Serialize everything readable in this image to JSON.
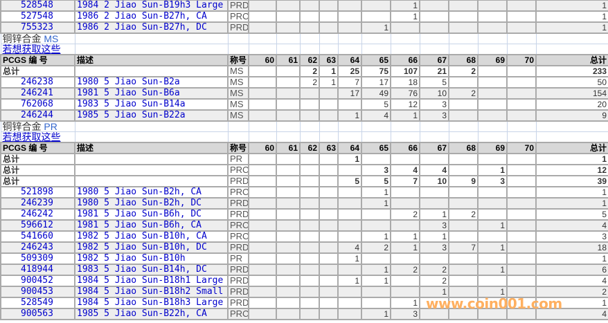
{
  "columns": {
    "pcgs": "PCGS 编 号",
    "desc": "描述",
    "grade": "称号",
    "grades": [
      "60",
      "61",
      "62",
      "63",
      "64",
      "65",
      "66",
      "67",
      "68",
      "69",
      "70"
    ],
    "total": "总计"
  },
  "top_rows": [
    {
      "pcgs": "528548",
      "desc": "1984 2 Jiao Sun-B19h3 Large",
      "grade": "PRD",
      "values": [
        null,
        null,
        null,
        null,
        null,
        null,
        "1",
        null,
        null,
        null,
        null
      ],
      "total": "1"
    },
    {
      "pcgs": "527548",
      "desc": "1986 2 Jiao Sun-B27h, CA",
      "grade": "PRC",
      "values": [
        null,
        null,
        null,
        null,
        null,
        null,
        "1",
        null,
        null,
        null,
        null
      ],
      "total": "1"
    },
    {
      "pcgs": "755323",
      "desc": "1986 2 Jiao Sun-B27h, DC",
      "grade": "PRD",
      "values": [
        null,
        null,
        null,
        null,
        null,
        "1",
        null,
        null,
        null,
        null,
        null
      ],
      "total": "1"
    }
  ],
  "sections": [
    {
      "title": "铜锌合金",
      "grade_label": "MS",
      "link": "若想获取这些",
      "totals": [
        {
          "label": "总计",
          "grade": "MS",
          "values": [
            null,
            null,
            "2",
            "1",
            "25",
            "75",
            "107",
            "21",
            "2",
            null,
            null
          ],
          "total": "233"
        }
      ],
      "rows": [
        {
          "pcgs": "246238",
          "desc": "1980 5 Jiao Sun-B2a",
          "grade": "MS",
          "values": [
            null,
            null,
            "2",
            "1",
            "7",
            "17",
            "18",
            "5",
            null,
            null,
            null
          ],
          "total": "50"
        },
        {
          "pcgs": "246241",
          "desc": "1981 5 Jiao Sun-B6a",
          "grade": "MS",
          "values": [
            null,
            null,
            null,
            null,
            "17",
            "49",
            "76",
            "10",
            "2",
            null,
            null
          ],
          "total": "154"
        },
        {
          "pcgs": "762068",
          "desc": "1983 5 Jiao Sun-B14a",
          "grade": "MS",
          "values": [
            null,
            null,
            null,
            null,
            null,
            "5",
            "12",
            "3",
            null,
            null,
            null
          ],
          "total": "20"
        },
        {
          "pcgs": "246244",
          "desc": "1985 5 Jiao Sun-B22a",
          "grade": "MS",
          "values": [
            null,
            null,
            null,
            null,
            "1",
            "4",
            "1",
            "3",
            null,
            null,
            null
          ],
          "total": "9"
        }
      ]
    },
    {
      "title": "铜锌合金",
      "grade_label": "PR",
      "link": "若想获取这些",
      "totals": [
        {
          "label": "总计",
          "grade": "PR",
          "values": [
            null,
            null,
            null,
            null,
            "1",
            null,
            null,
            null,
            null,
            null,
            null
          ],
          "total": "1"
        },
        {
          "label": "总计",
          "grade": "PRC",
          "values": [
            null,
            null,
            null,
            null,
            null,
            "3",
            "4",
            "4",
            null,
            "1",
            null
          ],
          "total": "12"
        },
        {
          "label": "总计",
          "grade": "PRD",
          "values": [
            null,
            null,
            null,
            null,
            "5",
            "5",
            "7",
            "10",
            "9",
            "3",
            null
          ],
          "total": "39"
        }
      ],
      "rows": [
        {
          "pcgs": "521898",
          "desc": "1980 5 Jiao Sun-B2h, CA",
          "grade": "PRC",
          "values": [
            null,
            null,
            null,
            null,
            null,
            "1",
            null,
            null,
            null,
            null,
            null
          ],
          "total": "1"
        },
        {
          "pcgs": "246239",
          "desc": "1980 5 Jiao Sun-B2h, DC",
          "grade": "PRD",
          "values": [
            null,
            null,
            null,
            null,
            null,
            "1",
            null,
            null,
            null,
            null,
            null
          ],
          "total": "1"
        },
        {
          "pcgs": "246242",
          "desc": "1981 5 Jiao Sun-B6h, DC",
          "grade": "PRD",
          "values": [
            null,
            null,
            null,
            null,
            null,
            null,
            "2",
            "1",
            "2",
            null,
            null
          ],
          "total": "5"
        },
        {
          "pcgs": "596612",
          "desc": "1981 5 Jiao Sun-B6h, CA",
          "grade": "PRC",
          "values": [
            null,
            null,
            null,
            null,
            null,
            null,
            null,
            "3",
            null,
            "1",
            null
          ],
          "total": "4"
        },
        {
          "pcgs": "541660",
          "desc": "1982 5 Jiao Sun-B10h, CA",
          "grade": "PRC",
          "values": [
            null,
            null,
            null,
            null,
            null,
            "1",
            "1",
            "1",
            null,
            null,
            null
          ],
          "total": "3"
        },
        {
          "pcgs": "246243",
          "desc": "1982 5 Jiao Sun-B10h, DC",
          "grade": "PRD",
          "values": [
            null,
            null,
            null,
            null,
            "4",
            "2",
            "1",
            "3",
            "7",
            "1",
            null
          ],
          "total": "18"
        },
        {
          "pcgs": "509309",
          "desc": "1982 5 Jiao Sun-B10h",
          "grade": "PR",
          "values": [
            null,
            null,
            null,
            null,
            "1",
            null,
            null,
            null,
            null,
            null,
            null
          ],
          "total": "1"
        },
        {
          "pcgs": "418944",
          "desc": "1983 5 Jiao Sun-B14h, DC",
          "grade": "PRD",
          "values": [
            null,
            null,
            null,
            null,
            null,
            "1",
            "2",
            "2",
            null,
            "1",
            null
          ],
          "total": "6"
        },
        {
          "pcgs": "900452",
          "desc": "1984 5 Jiao Sun-B18h1 Large",
          "grade": "PRD",
          "values": [
            null,
            null,
            null,
            null,
            "1",
            "1",
            null,
            "2",
            null,
            null,
            null
          ],
          "total": "4"
        },
        {
          "pcgs": "900453",
          "desc": "1984 5 Jiao Sun-B18h2 Small",
          "grade": "PRD",
          "values": [
            null,
            null,
            null,
            null,
            null,
            null,
            null,
            "1",
            null,
            "1",
            null
          ],
          "total": "2"
        },
        {
          "pcgs": "528549",
          "desc": "1984 5 Jiao Sun-B18h3 Large",
          "grade": "PRD",
          "values": [
            null,
            null,
            null,
            null,
            null,
            null,
            "1",
            null,
            null,
            null,
            null
          ],
          "total": "1"
        },
        {
          "pcgs": "900563",
          "desc": "1985 5 Jiao Sun-B22h, CA",
          "grade": "PRC",
          "values": [
            null,
            null,
            null,
            null,
            null,
            "1",
            "3",
            null,
            null,
            null,
            null
          ],
          "total": "4"
        }
      ]
    }
  ],
  "watermark": "www.coin001.com",
  "colors": {
    "link": "#0000cc",
    "grid": "#aaaaaa",
    "header_bg": "#d8d8d8",
    "alt_row": "#eeeeee",
    "watermark": "#ffb060"
  }
}
